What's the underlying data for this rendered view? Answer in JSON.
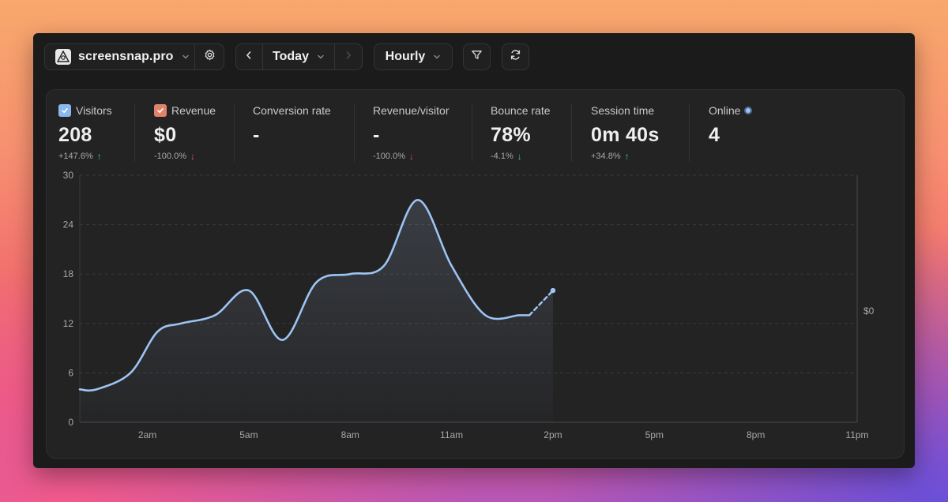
{
  "toolbar": {
    "site": "screensnap.pro",
    "date": "Today",
    "granularity": "Hourly"
  },
  "metrics": [
    {
      "label": "Visitors",
      "value": "208",
      "delta": "+147.6%",
      "direction": "up",
      "checkbox_color": "#8ab8ef"
    },
    {
      "label": "Revenue",
      "value": "$0",
      "delta": "-100.0%",
      "direction": "down",
      "checkbox_color": "#e0836b"
    },
    {
      "label": "Conversion rate",
      "value": "-",
      "delta": "",
      "direction": ""
    },
    {
      "label": "Revenue/visitor",
      "value": "-",
      "delta": "-100.0%",
      "direction": "down"
    },
    {
      "label": "Bounce rate",
      "value": "78%",
      "delta": "-4.1%",
      "direction": "down"
    },
    {
      "label": "Session time",
      "value": "0m 40s",
      "delta": "+34.8%",
      "direction": "up"
    },
    {
      "label": "Online",
      "value": "4",
      "delta": "",
      "direction": ""
    }
  ],
  "chart_data": {
    "type": "line",
    "x_tick_labels": [
      "2am",
      "5am",
      "8am",
      "11am",
      "2pm",
      "5pm",
      "8pm",
      "11pm"
    ],
    "y_tick_labels": [
      "0",
      "6",
      "12",
      "18",
      "24",
      "30"
    ],
    "ylim": [
      0,
      30
    ],
    "xlim": [
      0,
      23
    ],
    "grid": true,
    "series": [
      {
        "x": [
          0,
          0.5,
          1.5,
          2.3,
          3,
          4,
          5,
          6,
          7,
          8,
          9,
          10,
          11,
          12,
          13,
          13.3
        ],
        "values": [
          4,
          4,
          6,
          11,
          12,
          13,
          16,
          10,
          17,
          18,
          19,
          27,
          19,
          13,
          13,
          13
        ],
        "color": "#9cc4f3"
      }
    ],
    "projection": {
      "x": [
        13,
        14
      ],
      "values": [
        13,
        16
      ]
    },
    "right_axis_label": "$0",
    "colors": {
      "line": "#9cc4f3",
      "grid": "#3a3a3c",
      "tick_text": "#a8a8ab"
    }
  }
}
